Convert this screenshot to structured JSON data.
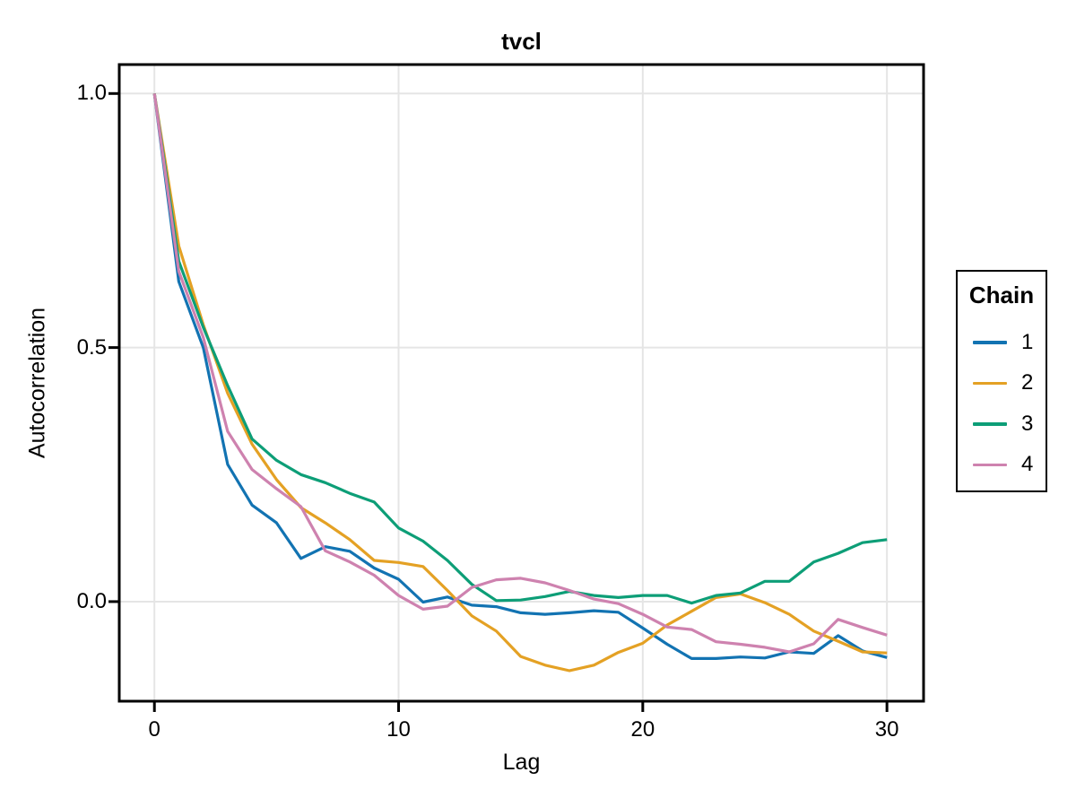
{
  "title": "tvcl",
  "chart_data": {
    "type": "line",
    "title": "tvcl",
    "xlabel": "Lag",
    "ylabel": "Autocorrelation",
    "legend_title": "Chain",
    "legend_position": "right-outside",
    "grid": true,
    "grid_color": "#e5e5e5",
    "frame_color": "#000000",
    "xlim": [
      -1.44,
      31.5
    ],
    "ylim": [
      -0.196,
      1.057
    ],
    "x_tick_values": [
      0,
      10,
      20,
      30
    ],
    "x_tick_labels": [
      "0",
      "10",
      "20",
      "30"
    ],
    "y_tick_values": [
      1.0,
      0.5,
      0.0
    ],
    "y_tick_labels": [
      "1.0",
      "0.5",
      "0.0"
    ],
    "x": [
      0,
      1,
      2,
      3,
      4,
      5,
      6,
      7,
      8,
      9,
      10,
      11,
      12,
      13,
      14,
      15,
      16,
      17,
      18,
      19,
      20,
      21,
      22,
      23,
      24,
      25,
      26,
      27,
      28,
      29,
      30
    ],
    "series": [
      {
        "name": "1",
        "color": "#1273B2",
        "values": [
          1.0,
          0.63,
          0.5,
          0.27,
          0.19,
          0.155,
          0.085,
          0.108,
          0.099,
          0.066,
          0.044,
          -0.001,
          0.009,
          -0.007,
          -0.01,
          -0.022,
          -0.025,
          -0.022,
          -0.018,
          -0.021,
          -0.052,
          -0.084,
          -0.112,
          -0.112,
          -0.109,
          -0.111,
          -0.099,
          -0.102,
          -0.067,
          -0.097,
          -0.11
        ]
      },
      {
        "name": "2",
        "color": "#E4A124",
        "values": [
          1.0,
          0.7,
          0.545,
          0.41,
          0.31,
          0.24,
          0.185,
          0.155,
          0.122,
          0.081,
          0.077,
          0.069,
          0.022,
          -0.028,
          -0.058,
          -0.108,
          -0.125,
          -0.136,
          -0.125,
          -0.1,
          -0.082,
          -0.046,
          -0.019,
          0.008,
          0.015,
          -0.002,
          -0.025,
          -0.058,
          -0.078,
          -0.099,
          -0.101
        ]
      },
      {
        "name": "3",
        "color": "#0D9E77",
        "values": [
          1.0,
          0.67,
          0.54,
          0.425,
          0.32,
          0.278,
          0.25,
          0.234,
          0.213,
          0.196,
          0.145,
          0.119,
          0.081,
          0.034,
          0.002,
          0.003,
          0.01,
          0.02,
          0.012,
          0.008,
          0.012,
          0.012,
          -0.003,
          0.012,
          0.017,
          0.04,
          0.04,
          0.078,
          0.095,
          0.116,
          0.122
        ]
      },
      {
        "name": "4",
        "color": "#CE82AF",
        "values": [
          1.0,
          0.65,
          0.52,
          0.335,
          0.26,
          0.222,
          0.187,
          0.1,
          0.078,
          0.052,
          0.012,
          -0.015,
          -0.009,
          0.028,
          0.043,
          0.046,
          0.037,
          0.022,
          0.005,
          -0.004,
          -0.025,
          -0.05,
          -0.055,
          -0.079,
          -0.084,
          -0.09,
          -0.099,
          -0.083,
          -0.035,
          -0.051,
          -0.066
        ]
      }
    ]
  }
}
